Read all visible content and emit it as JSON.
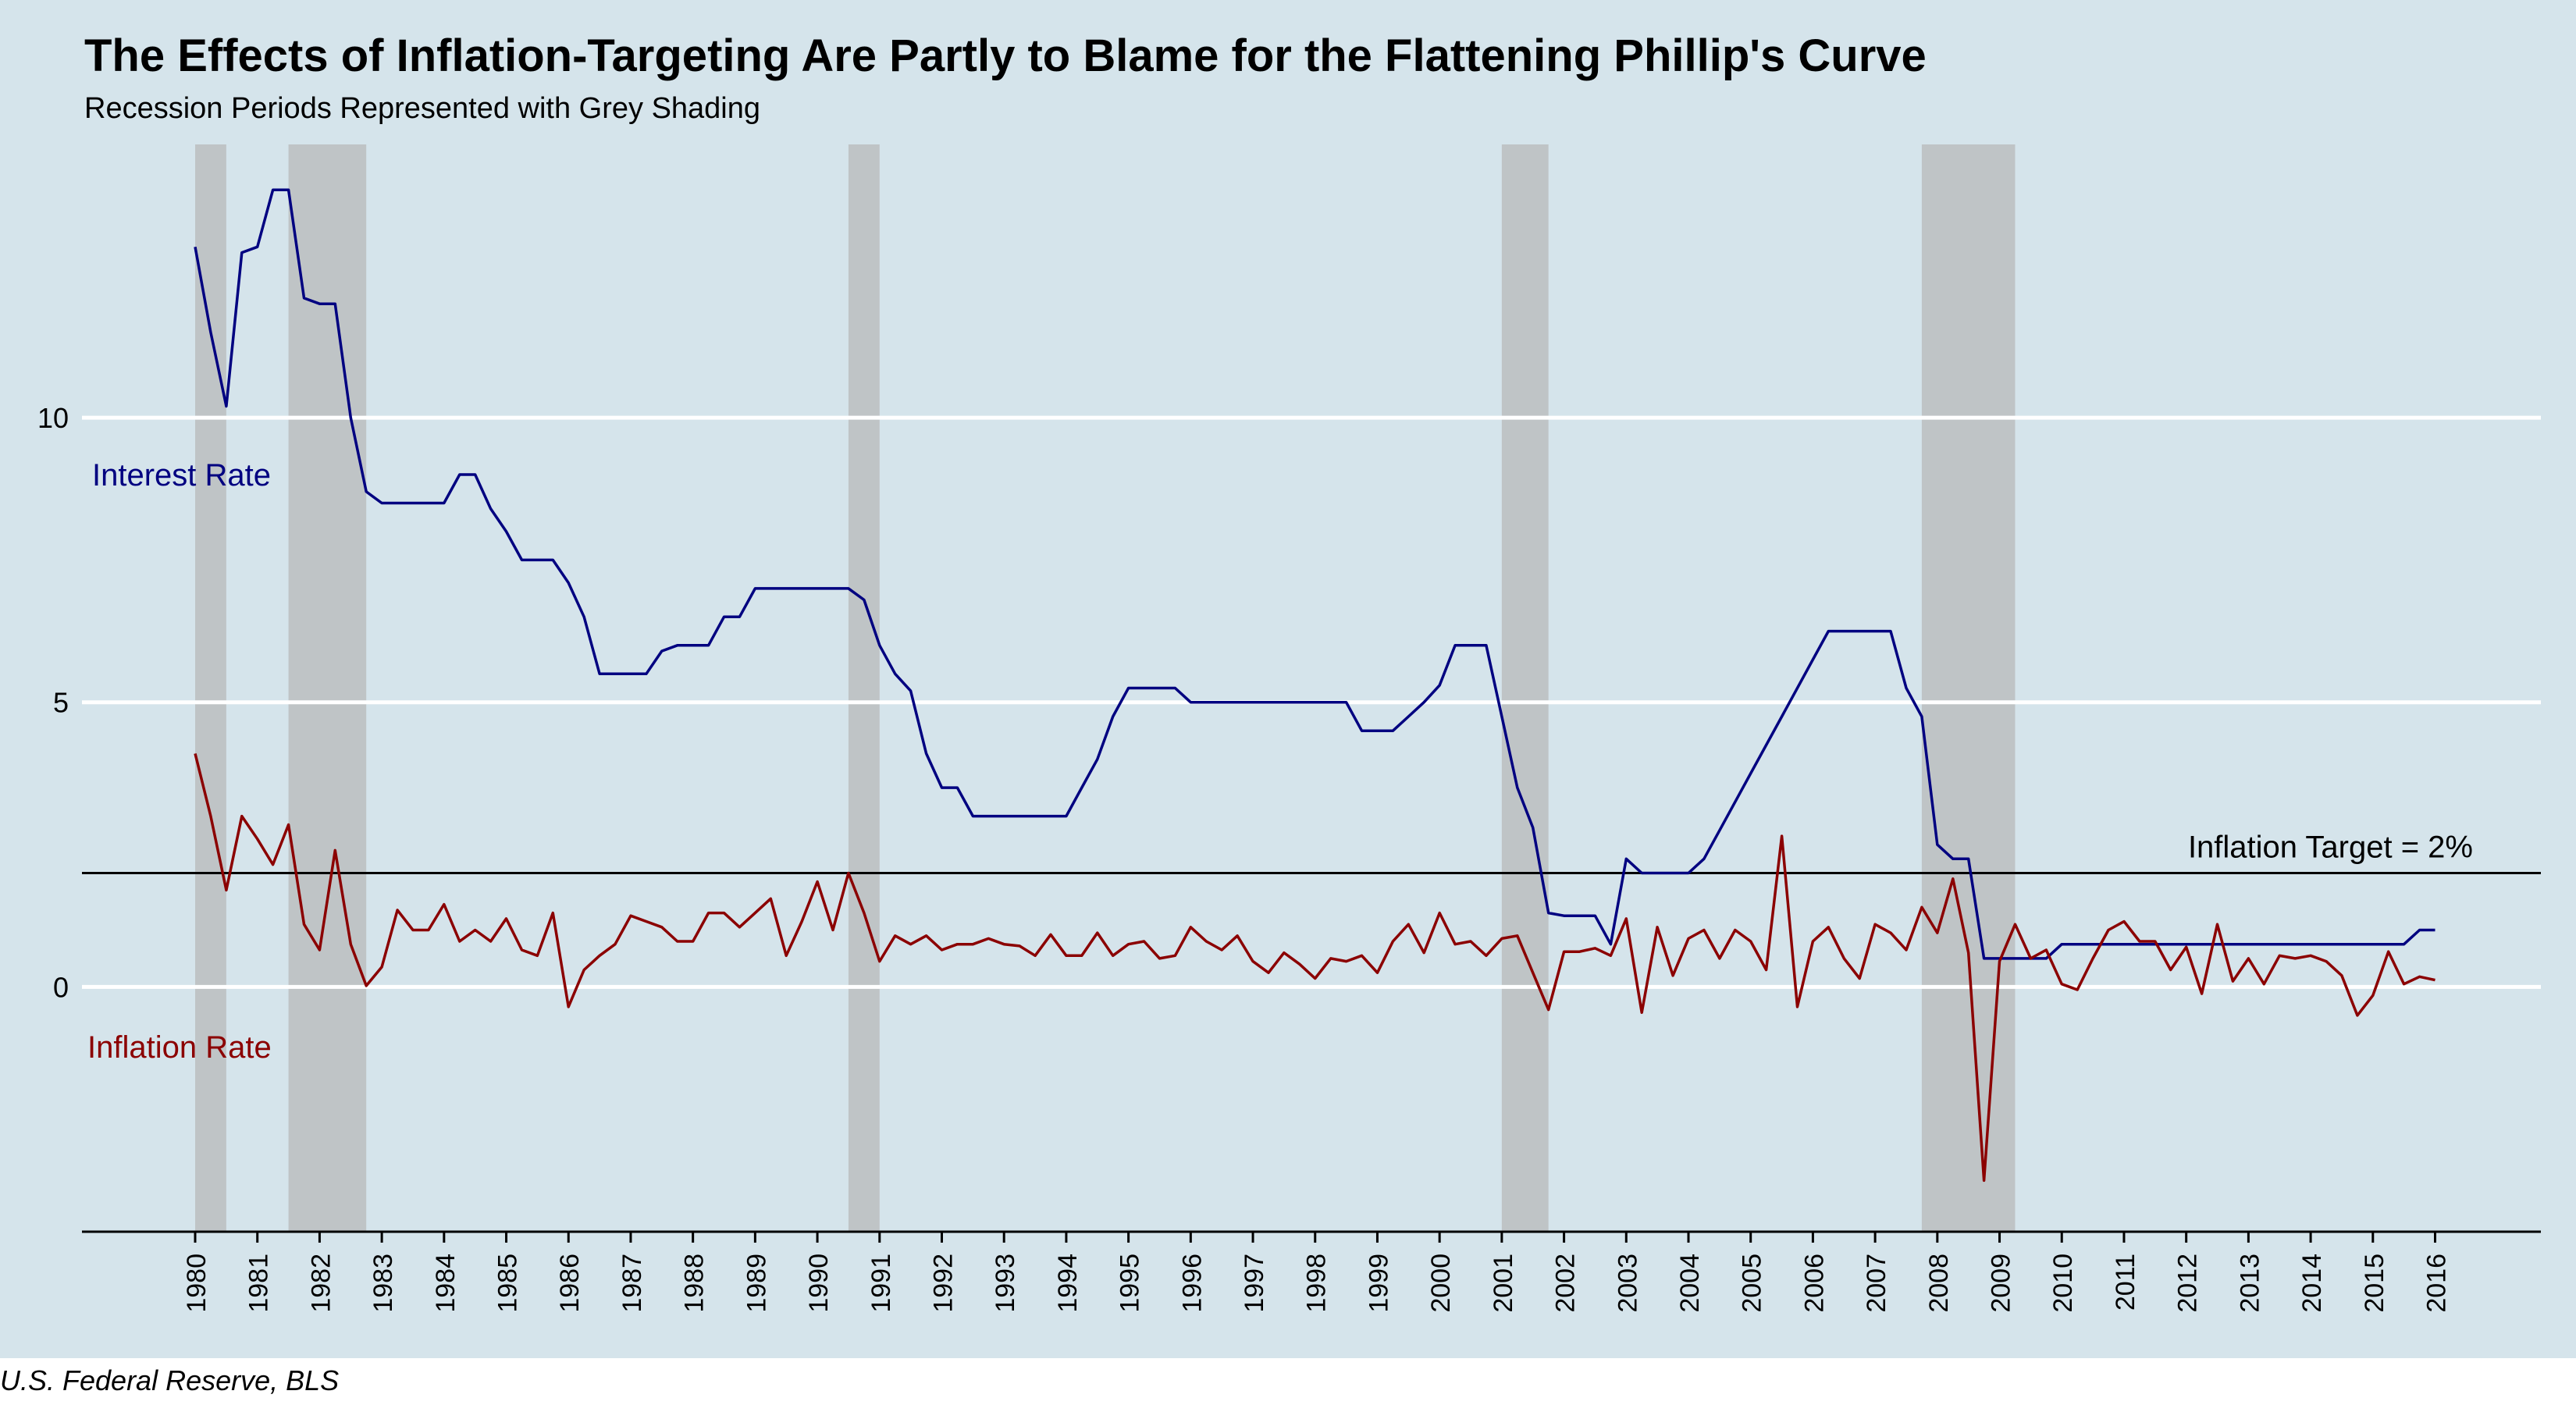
{
  "title": "The Effects of Inflation-Targeting Are Partly to Blame for the Flattening Phillip's Curve",
  "subtitle": "Recession Periods Represented with Grey Shading",
  "source": "U.S. Federal Reserve, BLS",
  "colors": {
    "background": "#d5e4eb",
    "interest": "#000080",
    "inflation": "#8b0000",
    "recession": "#bfc4c6",
    "grid": "#ffffff",
    "target_line": "#000000"
  },
  "chart_data": {
    "type": "line",
    "title": "The Effects of Inflation-Targeting Are Partly to Blame for the Flattening Phillip's Curve",
    "subtitle": "Recession Periods Represented with Grey Shading",
    "xlabel": "",
    "ylabel": "",
    "xlim": [
      1980,
      2017.7
    ],
    "ylim": [
      -4.3,
      14.8
    ],
    "y_ticks": [
      0,
      5,
      10
    ],
    "x_ticks": [
      1980,
      1981,
      1982,
      1983,
      1984,
      1985,
      1986,
      1987,
      1988,
      1989,
      1990,
      1991,
      1992,
      1993,
      1994,
      1995,
      1996,
      1997,
      1998,
      1999,
      2000,
      2001,
      2002,
      2003,
      2004,
      2005,
      2006,
      2007,
      2008,
      2009,
      2010,
      2011,
      2012,
      2013,
      2014,
      2015,
      2016
    ],
    "grid": true,
    "recessions": [
      [
        1980.0,
        1980.5
      ],
      [
        1981.5,
        1982.75
      ],
      [
        1990.5,
        1991.0
      ],
      [
        2001.0,
        2001.75
      ],
      [
        2007.75,
        2009.25
      ]
    ],
    "reference_line": {
      "y": 2,
      "label": "Inflation Target = 2%"
    },
    "series": [
      {
        "name": "Interest Rate",
        "points": [
          [
            1980.0,
            13.0
          ],
          [
            1980.25,
            11.5
          ],
          [
            1980.5,
            10.2
          ],
          [
            1980.75,
            12.9
          ],
          [
            1981.0,
            13.0
          ],
          [
            1981.25,
            14.0
          ],
          [
            1981.5,
            14.0
          ],
          [
            1981.75,
            12.1
          ],
          [
            1982.0,
            12.0
          ],
          [
            1982.25,
            12.0
          ],
          [
            1982.5,
            10.0
          ],
          [
            1982.75,
            8.7
          ],
          [
            1983.0,
            8.5
          ],
          [
            1983.5,
            8.5
          ],
          [
            1984.0,
            8.5
          ],
          [
            1984.25,
            9.0
          ],
          [
            1984.5,
            9.0
          ],
          [
            1984.75,
            8.4
          ],
          [
            1985.0,
            8.0
          ],
          [
            1985.25,
            7.5
          ],
          [
            1985.5,
            7.5
          ],
          [
            1985.75,
            7.5
          ],
          [
            1986.0,
            7.1
          ],
          [
            1986.25,
            6.5
          ],
          [
            1986.5,
            5.5
          ],
          [
            1987.0,
            5.5
          ],
          [
            1987.25,
            5.5
          ],
          [
            1987.5,
            5.9
          ],
          [
            1987.75,
            6.0
          ],
          [
            1988.0,
            6.0
          ],
          [
            1988.25,
            6.0
          ],
          [
            1988.5,
            6.5
          ],
          [
            1988.75,
            6.5
          ],
          [
            1989.0,
            7.0
          ],
          [
            1989.5,
            7.0
          ],
          [
            1990.0,
            7.0
          ],
          [
            1990.5,
            7.0
          ],
          [
            1990.75,
            6.8
          ],
          [
            1991.0,
            6.0
          ],
          [
            1991.25,
            5.5
          ],
          [
            1991.5,
            5.2
          ],
          [
            1991.75,
            4.1
          ],
          [
            1992.0,
            3.5
          ],
          [
            1992.25,
            3.5
          ],
          [
            1992.5,
            3.0
          ],
          [
            1993.0,
            3.0
          ],
          [
            1993.5,
            3.0
          ],
          [
            1994.0,
            3.0
          ],
          [
            1994.25,
            3.5
          ],
          [
            1994.5,
            4.0
          ],
          [
            1994.75,
            4.75
          ],
          [
            1995.0,
            5.25
          ],
          [
            1995.5,
            5.25
          ],
          [
            1995.75,
            5.25
          ],
          [
            1996.0,
            5.0
          ],
          [
            1996.5,
            5.0
          ],
          [
            1997.0,
            5.0
          ],
          [
            1997.5,
            5.0
          ],
          [
            1998.0,
            5.0
          ],
          [
            1998.5,
            5.0
          ],
          [
            1998.75,
            4.5
          ],
          [
            1999.0,
            4.5
          ],
          [
            1999.25,
            4.5
          ],
          [
            1999.5,
            4.75
          ],
          [
            1999.75,
            5.0
          ],
          [
            2000.0,
            5.3
          ],
          [
            2000.25,
            6.0
          ],
          [
            2000.5,
            6.0
          ],
          [
            2000.75,
            6.0
          ],
          [
            2001.0,
            4.75
          ],
          [
            2001.25,
            3.5
          ],
          [
            2001.5,
            2.8
          ],
          [
            2001.75,
            1.3
          ],
          [
            2002.0,
            1.25
          ],
          [
            2002.5,
            1.25
          ],
          [
            2002.75,
            0.75
          ],
          [
            2003.0,
            2.25
          ],
          [
            2003.25,
            2.0
          ],
          [
            2003.5,
            2.0
          ],
          [
            2004.0,
            2.0
          ],
          [
            2004.25,
            2.25
          ],
          [
            2004.5,
            2.75
          ],
          [
            2005.0,
            3.75
          ],
          [
            2005.5,
            4.75
          ],
          [
            2006.0,
            5.75
          ],
          [
            2006.25,
            6.25
          ],
          [
            2006.5,
            6.25
          ],
          [
            2007.0,
            6.25
          ],
          [
            2007.25,
            6.25
          ],
          [
            2007.5,
            5.25
          ],
          [
            2007.75,
            4.75
          ],
          [
            2008.0,
            2.5
          ],
          [
            2008.25,
            2.25
          ],
          [
            2008.5,
            2.25
          ],
          [
            2008.75,
            0.5
          ],
          [
            2009.0,
            0.5
          ],
          [
            2009.5,
            0.5
          ],
          [
            2009.75,
            0.5
          ],
          [
            2010.0,
            0.75
          ],
          [
            2010.5,
            0.75
          ],
          [
            2011.0,
            0.75
          ],
          [
            2012.0,
            0.75
          ],
          [
            2013.0,
            0.75
          ],
          [
            2014.0,
            0.75
          ],
          [
            2015.0,
            0.75
          ],
          [
            2015.5,
            0.75
          ],
          [
            2015.75,
            1.0
          ],
          [
            2016.0,
            1.0
          ]
        ]
      },
      {
        "name": "Inflation Rate",
        "points": [
          [
            1980.0,
            4.1
          ],
          [
            1980.25,
            3.0
          ],
          [
            1980.5,
            1.7
          ],
          [
            1980.75,
            3.0
          ],
          [
            1981.0,
            2.6
          ],
          [
            1981.25,
            2.15
          ],
          [
            1981.5,
            2.85
          ],
          [
            1981.75,
            1.1
          ],
          [
            1982.0,
            0.65
          ],
          [
            1982.25,
            2.4
          ],
          [
            1982.5,
            0.75
          ],
          [
            1982.75,
            0.02
          ],
          [
            1983.0,
            0.35
          ],
          [
            1983.25,
            1.35
          ],
          [
            1983.5,
            1.0
          ],
          [
            1983.75,
            1.0
          ],
          [
            1984.0,
            1.45
          ],
          [
            1984.25,
            0.8
          ],
          [
            1984.5,
            1.0
          ],
          [
            1984.75,
            0.8
          ],
          [
            1985.0,
            1.2
          ],
          [
            1985.25,
            0.65
          ],
          [
            1985.5,
            0.55
          ],
          [
            1985.75,
            1.3
          ],
          [
            1986.0,
            -0.35
          ],
          [
            1986.25,
            0.3
          ],
          [
            1986.5,
            0.55
          ],
          [
            1986.75,
            0.75
          ],
          [
            1987.0,
            1.25
          ],
          [
            1987.25,
            1.15
          ],
          [
            1987.5,
            1.05
          ],
          [
            1987.75,
            0.8
          ],
          [
            1988.0,
            0.8
          ],
          [
            1988.25,
            1.3
          ],
          [
            1988.5,
            1.3
          ],
          [
            1988.75,
            1.05
          ],
          [
            1989.0,
            1.3
          ],
          [
            1989.25,
            1.55
          ],
          [
            1989.5,
            0.55
          ],
          [
            1989.75,
            1.15
          ],
          [
            1990.0,
            1.85
          ],
          [
            1990.25,
            1.0
          ],
          [
            1990.5,
            2.0
          ],
          [
            1990.75,
            1.3
          ],
          [
            1991.0,
            0.45
          ],
          [
            1991.25,
            0.9
          ],
          [
            1991.5,
            0.75
          ],
          [
            1991.75,
            0.9
          ],
          [
            1992.0,
            0.65
          ],
          [
            1992.25,
            0.75
          ],
          [
            1992.5,
            0.75
          ],
          [
            1992.75,
            0.85
          ],
          [
            1993.0,
            0.75
          ],
          [
            1993.25,
            0.72
          ],
          [
            1993.5,
            0.55
          ],
          [
            1993.75,
            0.92
          ],
          [
            1994.0,
            0.55
          ],
          [
            1994.25,
            0.55
          ],
          [
            1994.5,
            0.95
          ],
          [
            1994.75,
            0.55
          ],
          [
            1995.0,
            0.75
          ],
          [
            1995.25,
            0.8
          ],
          [
            1995.5,
            0.5
          ],
          [
            1995.75,
            0.55
          ],
          [
            1996.0,
            1.05
          ],
          [
            1996.25,
            0.8
          ],
          [
            1996.5,
            0.65
          ],
          [
            1996.75,
            0.9
          ],
          [
            1997.0,
            0.45
          ],
          [
            1997.25,
            0.25
          ],
          [
            1997.5,
            0.6
          ],
          [
            1997.75,
            0.4
          ],
          [
            1998.0,
            0.15
          ],
          [
            1998.25,
            0.5
          ],
          [
            1998.5,
            0.45
          ],
          [
            1998.75,
            0.55
          ],
          [
            1999.0,
            0.25
          ],
          [
            1999.25,
            0.8
          ],
          [
            1999.5,
            1.1
          ],
          [
            1999.75,
            0.6
          ],
          [
            2000.0,
            1.3
          ],
          [
            2000.25,
            0.75
          ],
          [
            2000.5,
            0.8
          ],
          [
            2000.75,
            0.55
          ],
          [
            2001.0,
            0.85
          ],
          [
            2001.25,
            0.9
          ],
          [
            2001.5,
            0.25
          ],
          [
            2001.75,
            -0.4
          ],
          [
            2002.0,
            0.62
          ],
          [
            2002.25,
            0.62
          ],
          [
            2002.5,
            0.68
          ],
          [
            2002.75,
            0.55
          ],
          [
            2003.0,
            1.2
          ],
          [
            2003.25,
            -0.45
          ],
          [
            2003.5,
            1.05
          ],
          [
            2003.75,
            0.2
          ],
          [
            2004.0,
            0.85
          ],
          [
            2004.25,
            1.0
          ],
          [
            2004.5,
            0.5
          ],
          [
            2004.75,
            1.0
          ],
          [
            2005.0,
            0.8
          ],
          [
            2005.25,
            0.3
          ],
          [
            2005.5,
            2.65
          ],
          [
            2005.75,
            -0.35
          ],
          [
            2006.0,
            0.8
          ],
          [
            2006.25,
            1.05
          ],
          [
            2006.5,
            0.5
          ],
          [
            2006.75,
            0.15
          ],
          [
            2007.0,
            1.1
          ],
          [
            2007.25,
            0.95
          ],
          [
            2007.5,
            0.65
          ],
          [
            2007.75,
            1.4
          ],
          [
            2008.0,
            0.95
          ],
          [
            2008.25,
            1.9
          ],
          [
            2008.5,
            0.6
          ],
          [
            2008.75,
            -3.4
          ],
          [
            2009.0,
            0.45
          ],
          [
            2009.25,
            1.1
          ],
          [
            2009.5,
            0.5
          ],
          [
            2009.75,
            0.65
          ],
          [
            2010.0,
            0.05
          ],
          [
            2010.25,
            -0.05
          ],
          [
            2010.5,
            0.5
          ],
          [
            2010.75,
            1.0
          ],
          [
            2011.0,
            1.15
          ],
          [
            2011.25,
            0.8
          ],
          [
            2011.5,
            0.8
          ],
          [
            2011.75,
            0.3
          ],
          [
            2012.0,
            0.7
          ],
          [
            2012.25,
            -0.12
          ],
          [
            2012.5,
            1.1
          ],
          [
            2012.75,
            0.1
          ],
          [
            2013.0,
            0.5
          ],
          [
            2013.25,
            0.05
          ],
          [
            2013.5,
            0.55
          ],
          [
            2013.75,
            0.5
          ],
          [
            2014.0,
            0.55
          ],
          [
            2014.25,
            0.45
          ],
          [
            2014.5,
            0.2
          ],
          [
            2014.75,
            -0.5
          ],
          [
            2015.0,
            -0.15
          ],
          [
            2015.25,
            0.62
          ],
          [
            2015.5,
            0.05
          ],
          [
            2015.75,
            0.18
          ],
          [
            2016.0,
            0.12
          ]
        ]
      }
    ]
  }
}
